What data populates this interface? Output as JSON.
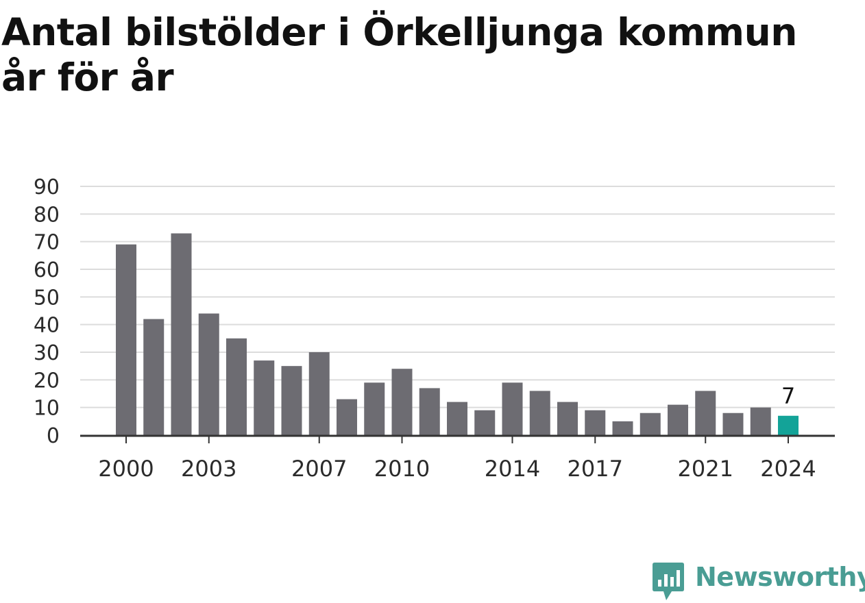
{
  "colors": {
    "bar": "#6d6c72",
    "highlight": "#13a398",
    "grid": "#dcdcdc",
    "axis": "#333333",
    "brand": "#4a9d94"
  },
  "brand": {
    "name": "Newsworthy",
    "icon": "newsworthy-logo-icon"
  },
  "chart_data": {
    "type": "bar",
    "title": "Antal bilstölder i Örkelljunga kommun år för år",
    "xlabel": "",
    "ylabel": "",
    "ylim": [
      0,
      90
    ],
    "yticks": [
      0,
      10,
      20,
      30,
      40,
      50,
      60,
      70,
      80,
      90
    ],
    "grid": true,
    "categories": [
      2000,
      2001,
      2002,
      2003,
      2004,
      2005,
      2006,
      2007,
      2008,
      2009,
      2010,
      2011,
      2012,
      2013,
      2014,
      2015,
      2016,
      2017,
      2018,
      2019,
      2020,
      2021,
      2022,
      2023,
      2024
    ],
    "values": [
      69,
      42,
      73,
      44,
      35,
      27,
      25,
      30,
      13,
      19,
      24,
      17,
      12,
      9,
      19,
      16,
      12,
      9,
      5,
      8,
      11,
      16,
      8,
      10,
      7
    ],
    "xtick_labels": [
      "2000",
      "2003",
      "2007",
      "2010",
      "2014",
      "2017",
      "2021",
      "2024"
    ],
    "highlight": {
      "category": 2024,
      "label": "7"
    }
  }
}
